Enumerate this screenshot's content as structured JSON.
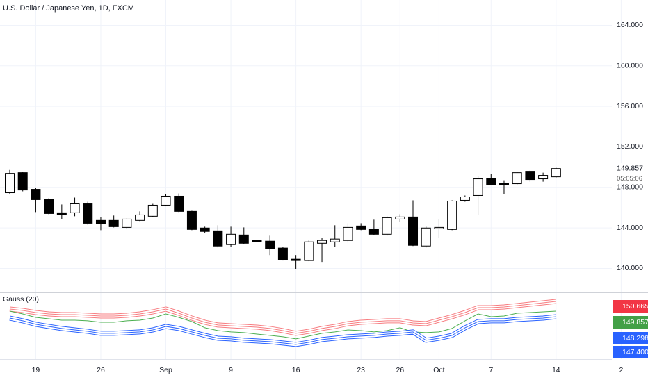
{
  "chart_data": [
    {
      "type": "candlestick",
      "title": "U.S. Dollar / Japanese Yen, 1D, FXCM",
      "categories": [
        null,
        null,
        "19",
        null,
        null,
        null,
        null,
        "26",
        null,
        null,
        null,
        null,
        "Sep",
        null,
        null,
        null,
        null,
        "9",
        null,
        null,
        null,
        null,
        "16",
        null,
        null,
        null,
        null,
        "23",
        null,
        null,
        "26",
        null,
        null,
        "Oct",
        null,
        null,
        null,
        "7",
        null,
        null,
        null,
        null,
        "14",
        null,
        null,
        null,
        null,
        "2"
      ],
      "open": [
        147.47,
        149.45,
        147.81,
        146.79,
        145.49,
        145.49,
        146.44,
        144.74,
        144.74,
        144.05,
        144.74,
        145.15,
        146.24,
        147.13,
        145.63,
        143.99,
        143.71,
        142.35,
        143.3,
        142.76,
        142.69,
        142.01,
        140.91,
        140.78,
        142.48,
        142.62,
        142.76,
        144.19,
        143.85,
        143.37,
        144.87,
        145.08,
        142.21,
        143.92,
        143.85,
        146.72,
        147.2,
        148.91,
        148.43,
        148.36,
        149.59,
        148.84,
        149.04,
        null,
        null,
        null,
        null,
        null
      ],
      "high": [
        149.72,
        149.52,
        147.95,
        146.92,
        146.31,
        146.99,
        146.58,
        145.08,
        145.22,
        144.94,
        145.63,
        146.44,
        147.33,
        147.4,
        145.69,
        144.12,
        144.26,
        144.12,
        144.05,
        143.23,
        143.23,
        142.14,
        141.32,
        142.76,
        143.03,
        144.26,
        144.46,
        144.46,
        144.81,
        145.15,
        145.35,
        146.72,
        144.12,
        144.87,
        146.72,
        147.2,
        149.11,
        149.31,
        148.7,
        149.52,
        149.66,
        149.45,
        149.93,
        null,
        null,
        null,
        null,
        null
      ],
      "low": [
        147.33,
        147.61,
        145.56,
        145.35,
        144.87,
        145.15,
        144.32,
        143.78,
        144.05,
        143.92,
        144.67,
        145.08,
        146.17,
        145.56,
        143.78,
        143.51,
        142.07,
        142.14,
        142.42,
        140.98,
        141.32,
        140.78,
        139.96,
        140.71,
        140.64,
        142.14,
        142.55,
        143.78,
        143.3,
        143.23,
        144.6,
        142.21,
        142.07,
        143.03,
        143.78,
        146.58,
        145.28,
        148.22,
        147.33,
        148.29,
        148.56,
        148.56,
        148.97,
        null,
        null,
        null,
        null,
        null
      ],
      "close": [
        149.38,
        147.74,
        146.79,
        145.42,
        145.28,
        146.44,
        144.46,
        144.4,
        144.12,
        144.87,
        145.28,
        146.24,
        147.13,
        145.63,
        143.85,
        143.65,
        142.21,
        143.37,
        142.48,
        142.62,
        141.94,
        140.84,
        140.78,
        142.62,
        142.76,
        142.9,
        144.05,
        143.85,
        143.37,
        145.01,
        145.08,
        142.28,
        143.99,
        144.05,
        146.65,
        147.06,
        148.84,
        148.29,
        148.29,
        149.45,
        148.77,
        149.18,
        149.857,
        null,
        null,
        null,
        null,
        null
      ],
      "up_color": "#ffffff",
      "down_color": "#000000",
      "wick_color": "#000000",
      "ylim": [
        137.7,
        166.5
      ],
      "yticks": [
        {
          "value": 140,
          "label": "140.000"
        },
        {
          "value": 144,
          "label": "144.000"
        },
        {
          "value": 148,
          "label": "148.000"
        },
        {
          "value": 152,
          "label": "152.000"
        },
        {
          "value": 156,
          "label": "156.000"
        },
        {
          "value": 160,
          "label": "160.000"
        },
        {
          "value": 164,
          "label": "164.000"
        }
      ],
      "grid": true,
      "current_price": 149.857,
      "countdown": "05:05:06"
    },
    {
      "type": "line",
      "title": "Gauss (20)",
      "ylim": [
        134.6,
        156.05
      ],
      "series": [
        {
          "color": "#f77c80",
          "style": "band",
          "values": [
            150.57,
            150.1,
            149.38,
            148.91,
            148.67,
            148.67,
            148.43,
            148.19,
            148.19,
            148.43,
            148.91,
            149.62,
            150.57,
            149.15,
            147.48,
            146.05,
            145.1,
            144.86,
            144.62,
            144.38,
            143.91,
            143.19,
            142.24,
            142.95,
            143.91,
            144.62,
            145.57,
            146.05,
            146.29,
            146.53,
            146.53,
            145.81,
            145.57,
            146.76,
            147.95,
            149.38,
            151.05,
            151.05,
            151.29,
            151.76,
            152.24,
            152.72,
            153.19,
            null,
            null,
            null,
            null,
            null
          ]
        },
        {
          "color": "#4caf50",
          "style": "line",
          "values": [
            149.86,
            148.91,
            147.72,
            147.24,
            146.76,
            146.76,
            146.53,
            146.05,
            146.05,
            146.53,
            146.76,
            147.48,
            148.91,
            147.72,
            146.29,
            144.15,
            143.19,
            142.72,
            142.48,
            142.0,
            141.53,
            141.05,
            140.34,
            141.29,
            142.24,
            142.72,
            143.43,
            143.19,
            142.72,
            143.19,
            144.15,
            142.72,
            142.48,
            142.72,
            143.91,
            146.53,
            148.91,
            147.95,
            148.19,
            149.15,
            149.38,
            149.62,
            149.86,
            null,
            null,
            null,
            null,
            null
          ]
        },
        {
          "color": "#2962ff",
          "style": "band",
          "values": [
            147.48,
            146.53,
            145.34,
            144.62,
            143.91,
            143.43,
            142.95,
            142.24,
            142.24,
            142.48,
            142.72,
            143.43,
            144.62,
            143.91,
            142.72,
            141.53,
            140.57,
            140.34,
            139.86,
            139.62,
            139.38,
            138.91,
            138.43,
            139.15,
            140.1,
            140.57,
            141.05,
            141.29,
            141.53,
            142.0,
            142.24,
            142.72,
            139.86,
            140.57,
            141.53,
            144.15,
            146.29,
            146.53,
            146.53,
            147.0,
            147.24,
            147.48,
            147.95,
            null,
            null,
            null,
            null,
            null
          ]
        }
      ],
      "badges": [
        {
          "value": 150.665,
          "color": "#f23645"
        },
        {
          "value": 149.857,
          "color": "#43a047"
        },
        {
          "value": 148.298,
          "color": "#2962ff"
        },
        {
          "value": 147.4,
          "label": "147.400",
          "color": "#2962ff"
        }
      ]
    }
  ]
}
